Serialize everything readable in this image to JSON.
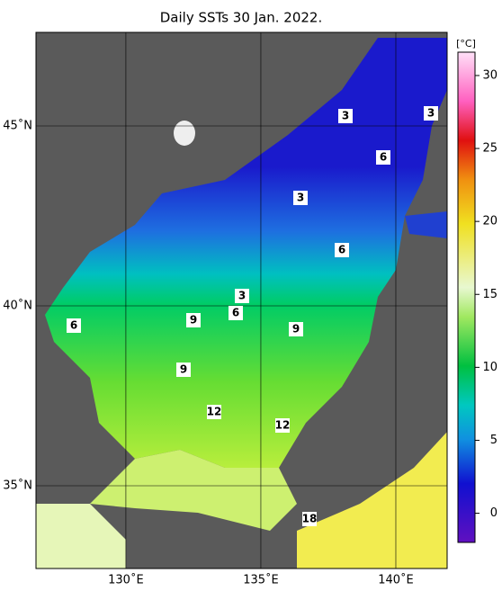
{
  "title": "Daily SSTs 30 Jan. 2022.",
  "map": {
    "lon_lim": [
      126.67,
      141.9
    ],
    "lat_lim": [
      32.7,
      47.6
    ],
    "lon_ticks": [
      {
        "value": 130,
        "label": "130˚E"
      },
      {
        "value": 135,
        "label": "135˚E"
      },
      {
        "value": 140,
        "label": "140˚E"
      }
    ],
    "lat_ticks": [
      {
        "value": 35,
        "label": "35˚N"
      },
      {
        "value": 40,
        "label": "40˚N"
      },
      {
        "value": 45,
        "label": "45˚N"
      }
    ]
  },
  "colorbar": {
    "unit": "[°C]",
    "lim": [
      -2,
      31.6
    ],
    "ticks": [
      0,
      5,
      10,
      15,
      20,
      25,
      30
    ]
  },
  "contour_labels": [
    3,
    3,
    3,
    3,
    6,
    6,
    6,
    6,
    9,
    9,
    9,
    12,
    12,
    18
  ]
}
